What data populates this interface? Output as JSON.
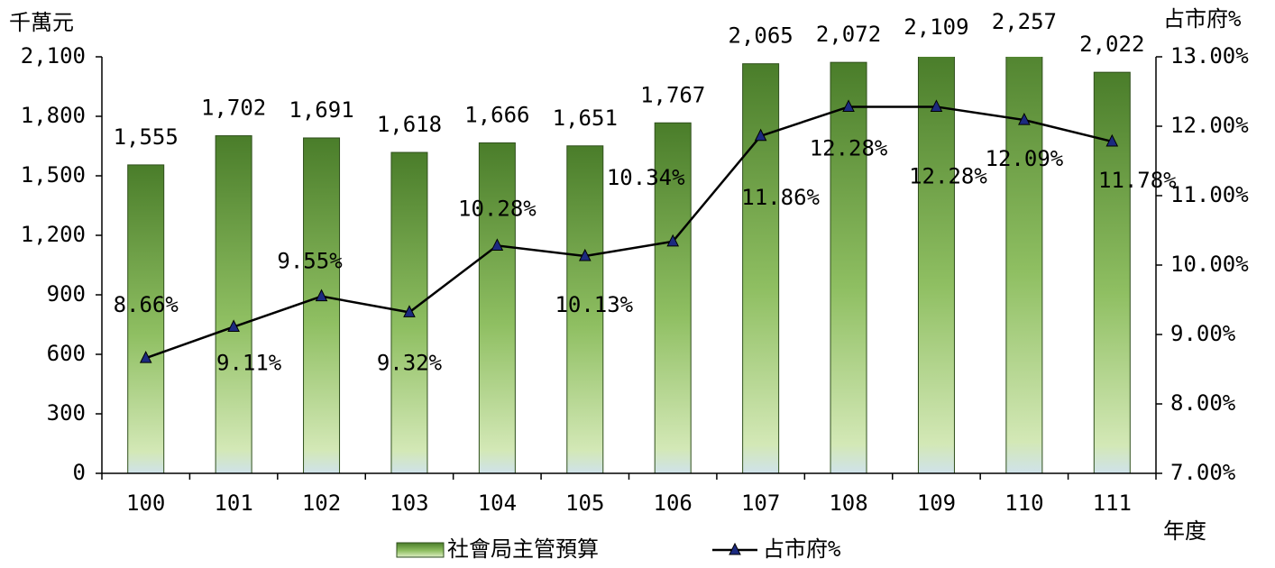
{
  "chart_data": {
    "type": "bar",
    "y_label": "千萬元",
    "y2_label": "占市府%",
    "x_label": "年度",
    "categories": [
      "100",
      "101",
      "102",
      "103",
      "104",
      "105",
      "106",
      "107",
      "108",
      "109",
      "110",
      "111"
    ],
    "series": [
      {
        "name": "社會局主管預算",
        "type": "bar",
        "color": "#4e8230",
        "values": [
          1555,
          1702,
          1691,
          1618,
          1666,
          1651,
          1767,
          2065,
          2072,
          2109,
          2257,
          2022
        ],
        "value_labels": [
          "1,555",
          "1,702",
          "1,691",
          "1,618",
          "1,666",
          "1,651",
          "1,767",
          "2,065",
          "2,072",
          "2,109",
          "2,257",
          "2,022"
        ]
      },
      {
        "name": "占市府%",
        "type": "line",
        "axis": "y2",
        "color": "#000000",
        "marker_color": "#1c2a80",
        "values": [
          8.66,
          9.11,
          9.55,
          9.32,
          10.28,
          10.13,
          10.34,
          11.86,
          12.28,
          12.28,
          12.09,
          11.78
        ],
        "value_labels": [
          "8.66%",
          "9.11%",
          "9.55%",
          "9.32%",
          "10.28%",
          "10.13%",
          "10.34%",
          "11.86%",
          "12.28%",
          "12.28%",
          "12.09%",
          "11.78%"
        ]
      }
    ],
    "ylim": [
      0,
      2100
    ],
    "yticks": [
      0,
      300,
      600,
      900,
      {
        "value": 1200,
        "label": "1,200"
      },
      {
        "value": 1500,
        "label": "1,500"
      },
      {
        "value": 1800,
        "label": "1,800"
      },
      {
        "value": 2100,
        "label": "2,100"
      }
    ],
    "y2lim": [
      7,
      13
    ],
    "y2ticks": [
      {
        "value": 7,
        "label": "7.00%"
      },
      {
        "value": 8,
        "label": "8.00%"
      },
      {
        "value": 9,
        "label": "9.00%"
      },
      {
        "value": 10,
        "label": "10.00%"
      },
      {
        "value": 11,
        "label": "11.00%"
      },
      {
        "value": 12,
        "label": "12.00%"
      },
      {
        "value": 13,
        "label": "13.00%"
      }
    ],
    "grid": false,
    "legend": "bottom"
  }
}
